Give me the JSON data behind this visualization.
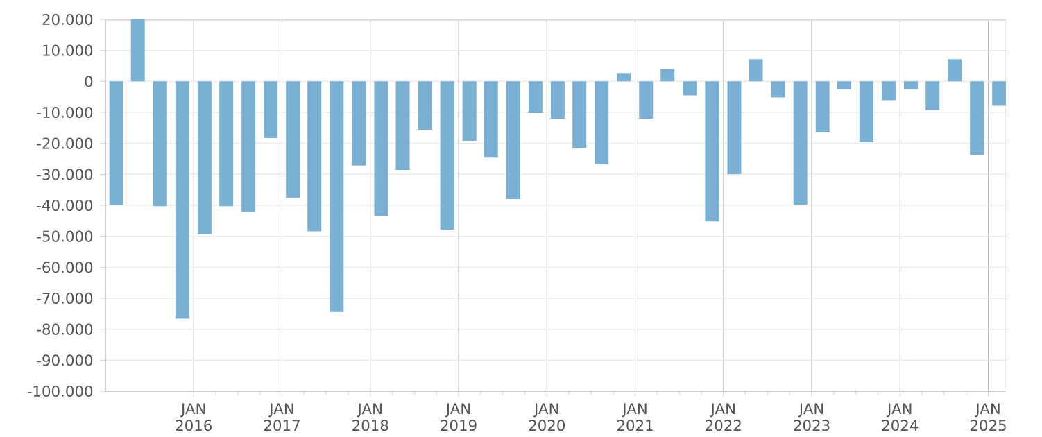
{
  "chart_data": {
    "type": "bar",
    "color": "#7ab0d4",
    "x": [
      "2015-02-15",
      "2015-05-15",
      "2015-08-15",
      "2015-11-15",
      "2016-02-15",
      "2016-05-15",
      "2016-08-15",
      "2016-11-15",
      "2017-02-15",
      "2017-05-15",
      "2017-08-15",
      "2017-11-15",
      "2018-02-15",
      "2018-05-15",
      "2018-08-15",
      "2018-11-15",
      "2019-02-15",
      "2019-05-15",
      "2019-08-15",
      "2019-11-15",
      "2020-02-15",
      "2020-05-15",
      "2020-08-15",
      "2020-11-15",
      "2021-02-15",
      "2021-05-15",
      "2021-08-15",
      "2021-11-15",
      "2022-02-15",
      "2022-05-15",
      "2022-08-15",
      "2022-11-15",
      "2023-02-15",
      "2023-05-15",
      "2023-08-15",
      "2023-11-15",
      "2024-02-15",
      "2024-05-15",
      "2024-08-15",
      "2024-11-15",
      "2025-02-15"
    ],
    "values": [
      -40000,
      20000,
      -40300,
      -76600,
      -49300,
      -40300,
      -42100,
      -18300,
      -37600,
      -48400,
      -74400,
      -27200,
      -43400,
      -28600,
      -15600,
      -47900,
      -19200,
      -24600,
      -38000,
      -10200,
      -12000,
      -21400,
      -26800,
      2700,
      -12000,
      4000,
      -4500,
      -45200,
      -29900,
      7200,
      -5200,
      -39800,
      -16500,
      -2500,
      -19600,
      -6100,
      -2500,
      -9300,
      7200,
      -23700,
      -7900
    ],
    "xlim": [
      "2015-01-01",
      "2025-03-15"
    ],
    "xticks": [
      {
        "value": "2016-01-01",
        "label": "JAN 2016"
      },
      {
        "value": "2017-01-01",
        "label": "JAN 2017"
      },
      {
        "value": "2018-01-01",
        "label": "JAN 2018"
      },
      {
        "value": "2019-01-01",
        "label": "JAN 2019"
      },
      {
        "value": "2020-01-01",
        "label": "JAN 2020"
      },
      {
        "value": "2021-01-01",
        "label": "JAN 2021"
      },
      {
        "value": "2022-01-01",
        "label": "JAN 2022"
      },
      {
        "value": "2023-01-01",
        "label": "JAN 2023"
      },
      {
        "value": "2024-01-01",
        "label": "JAN 2024"
      },
      {
        "value": "2025-01-01",
        "label": "JAN 2025"
      }
    ],
    "ylim": [
      -100000,
      20000
    ],
    "yticks": [
      {
        "value": 20000,
        "label": "20.000"
      },
      {
        "value": 10000,
        "label": "10.000"
      },
      {
        "value": 0,
        "label": "0"
      },
      {
        "value": -10000,
        "label": "-10.000"
      },
      {
        "value": -20000,
        "label": "-20.000"
      },
      {
        "value": -30000,
        "label": "-30.000"
      },
      {
        "value": -40000,
        "label": "-40.000"
      },
      {
        "value": -50000,
        "label": "-50.000"
      },
      {
        "value": -60000,
        "label": "-60.000"
      },
      {
        "value": -70000,
        "label": "-70.000"
      },
      {
        "value": -80000,
        "label": "-80.000"
      },
      {
        "value": -90000,
        "label": "-90.000"
      },
      {
        "value": -100000,
        "label": "-100.000"
      }
    ],
    "grid": true
  }
}
